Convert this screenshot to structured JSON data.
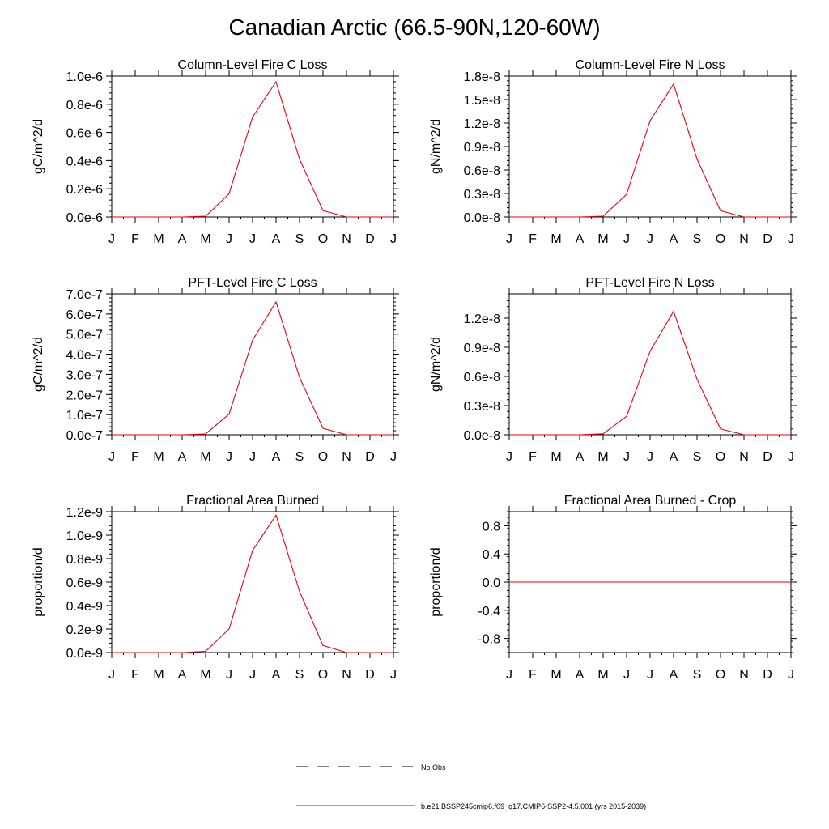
{
  "page": {
    "title": "Canadian Arctic (66.5-90N,120-60W)"
  },
  "legend": {
    "obs_label": "No Obs",
    "model_label": "b.e21.BSSP245cmip6.f09_g17.CMIP6-SSP2-4.5.001 (yrs 2015-2039)",
    "model_color": "#e8000b",
    "obs_color": "#000000"
  },
  "chart_data": [
    {
      "type": "line",
      "title": "Column-Level Fire C Loss",
      "ylabel": "gC/m^2/d",
      "categories": [
        "J",
        "F",
        "M",
        "A",
        "M",
        "J",
        "J",
        "A",
        "S",
        "O",
        "N",
        "D",
        "J"
      ],
      "ylim": [
        0,
        1e-06
      ],
      "yticks": [
        0,
        2e-07,
        4e-07,
        6e-07,
        8e-07,
        1e-06
      ],
      "ytick_labels": [
        "0.0e-6",
        "0.2e-6",
        "0.4e-6",
        "0.6e-6",
        "0.8e-6",
        "1.0e-6"
      ],
      "series": [
        {
          "color": "#e8000b",
          "values": [
            0,
            0,
            0,
            0,
            5e-09,
            1.65e-07,
            7.1e-07,
            9.6e-07,
            4.1e-07,
            4.5e-08,
            0,
            0,
            0
          ]
        }
      ]
    },
    {
      "type": "line",
      "title": "Column-Level Fire N Loss",
      "ylabel": "gN/m^2/d",
      "categories": [
        "J",
        "F",
        "M",
        "A",
        "M",
        "J",
        "J",
        "A",
        "S",
        "O",
        "N",
        "D",
        "J"
      ],
      "ylim": [
        0,
        1.8e-08
      ],
      "yticks": [
        0,
        3e-09,
        6e-09,
        9e-09,
        1.2e-08,
        1.5e-08,
        1.8e-08
      ],
      "ytick_labels": [
        "0.0e-8",
        "0.3e-8",
        "0.6e-8",
        "0.9e-8",
        "1.2e-8",
        "1.5e-8",
        "1.8e-8"
      ],
      "series": [
        {
          "color": "#e8000b",
          "values": [
            0,
            0,
            0,
            0,
            1e-10,
            2.9e-09,
            1.23e-08,
            1.7e-08,
            7.4e-09,
            8e-10,
            0,
            0,
            0
          ]
        }
      ]
    },
    {
      "type": "line",
      "title": "PFT-Level Fire C Loss",
      "ylabel": "gC/m^2/d",
      "categories": [
        "J",
        "F",
        "M",
        "A",
        "M",
        "J",
        "J",
        "A",
        "S",
        "O",
        "N",
        "D",
        "J"
      ],
      "ylim": [
        0,
        7e-07
      ],
      "yticks": [
        0,
        1e-07,
        2e-07,
        3e-07,
        4e-07,
        5e-07,
        6e-07,
        7e-07
      ],
      "ytick_labels": [
        "0.0e-7",
        "1.0e-7",
        "2.0e-7",
        "3.0e-7",
        "4.0e-7",
        "5.0e-7",
        "6.0e-7",
        "7.0e-7"
      ],
      "series": [
        {
          "color": "#e8000b",
          "values": [
            0,
            0,
            0,
            0,
            4e-09,
            1.03e-07,
            4.7e-07,
            6.6e-07,
            2.85e-07,
            3.2e-08,
            0,
            0,
            0
          ]
        }
      ]
    },
    {
      "type": "line",
      "title": "PFT-Level Fire N Loss",
      "ylabel": "gN/m^2/d",
      "categories": [
        "J",
        "F",
        "M",
        "A",
        "M",
        "J",
        "J",
        "A",
        "S",
        "O",
        "N",
        "D",
        "J"
      ],
      "ylim": [
        0,
        1.45e-08
      ],
      "yticks": [
        0,
        3e-09,
        6e-09,
        9e-09,
        1.2e-08
      ],
      "ytick_labels": [
        "0.0e-8",
        "0.3e-8",
        "0.6e-8",
        "0.9e-8",
        "1.2e-8"
      ],
      "series": [
        {
          "color": "#e8000b",
          "values": [
            0,
            0,
            0,
            0,
            1e-10,
            1.9e-09,
            8.6e-09,
            1.27e-08,
            5.7e-09,
            6e-10,
            0,
            0,
            0
          ]
        }
      ]
    },
    {
      "type": "line",
      "title": "Fractional Area Burned",
      "ylabel": "proportion/d",
      "categories": [
        "J",
        "F",
        "M",
        "A",
        "M",
        "J",
        "J",
        "A",
        "S",
        "O",
        "N",
        "D",
        "J"
      ],
      "ylim": [
        0,
        1.2e-09
      ],
      "yticks": [
        0,
        2e-10,
        4e-10,
        6e-10,
        8e-10,
        1e-09,
        1.2e-09
      ],
      "ytick_labels": [
        "0.0e-9",
        "0.2e-9",
        "0.4e-9",
        "0.6e-9",
        "0.8e-9",
        "1.0e-9",
        "1.2e-9"
      ],
      "series": [
        {
          "color": "#e8000b",
          "values": [
            0,
            0,
            0,
            0,
            1e-11,
            2e-10,
            8.7e-10,
            1.17e-09,
            5.2e-10,
            6e-11,
            0,
            0,
            0
          ]
        }
      ]
    },
    {
      "type": "line",
      "title": "Fractional Area Burned - Crop",
      "ylabel": "proportion/d",
      "categories": [
        "J",
        "F",
        "M",
        "A",
        "M",
        "J",
        "J",
        "A",
        "S",
        "O",
        "N",
        "D",
        "J"
      ],
      "ylim": [
        -1.0,
        1.0
      ],
      "yticks": [
        -0.8,
        -0.4,
        0,
        0.4,
        0.8
      ],
      "ytick_labels": [
        "-0.8",
        "-0.4",
        "0.0",
        "0.4",
        "0.8"
      ],
      "series": [
        {
          "color": "#e8000b",
          "values": [
            0,
            0,
            0,
            0,
            0,
            0,
            0,
            0,
            0,
            0,
            0,
            0,
            0
          ]
        }
      ]
    }
  ]
}
